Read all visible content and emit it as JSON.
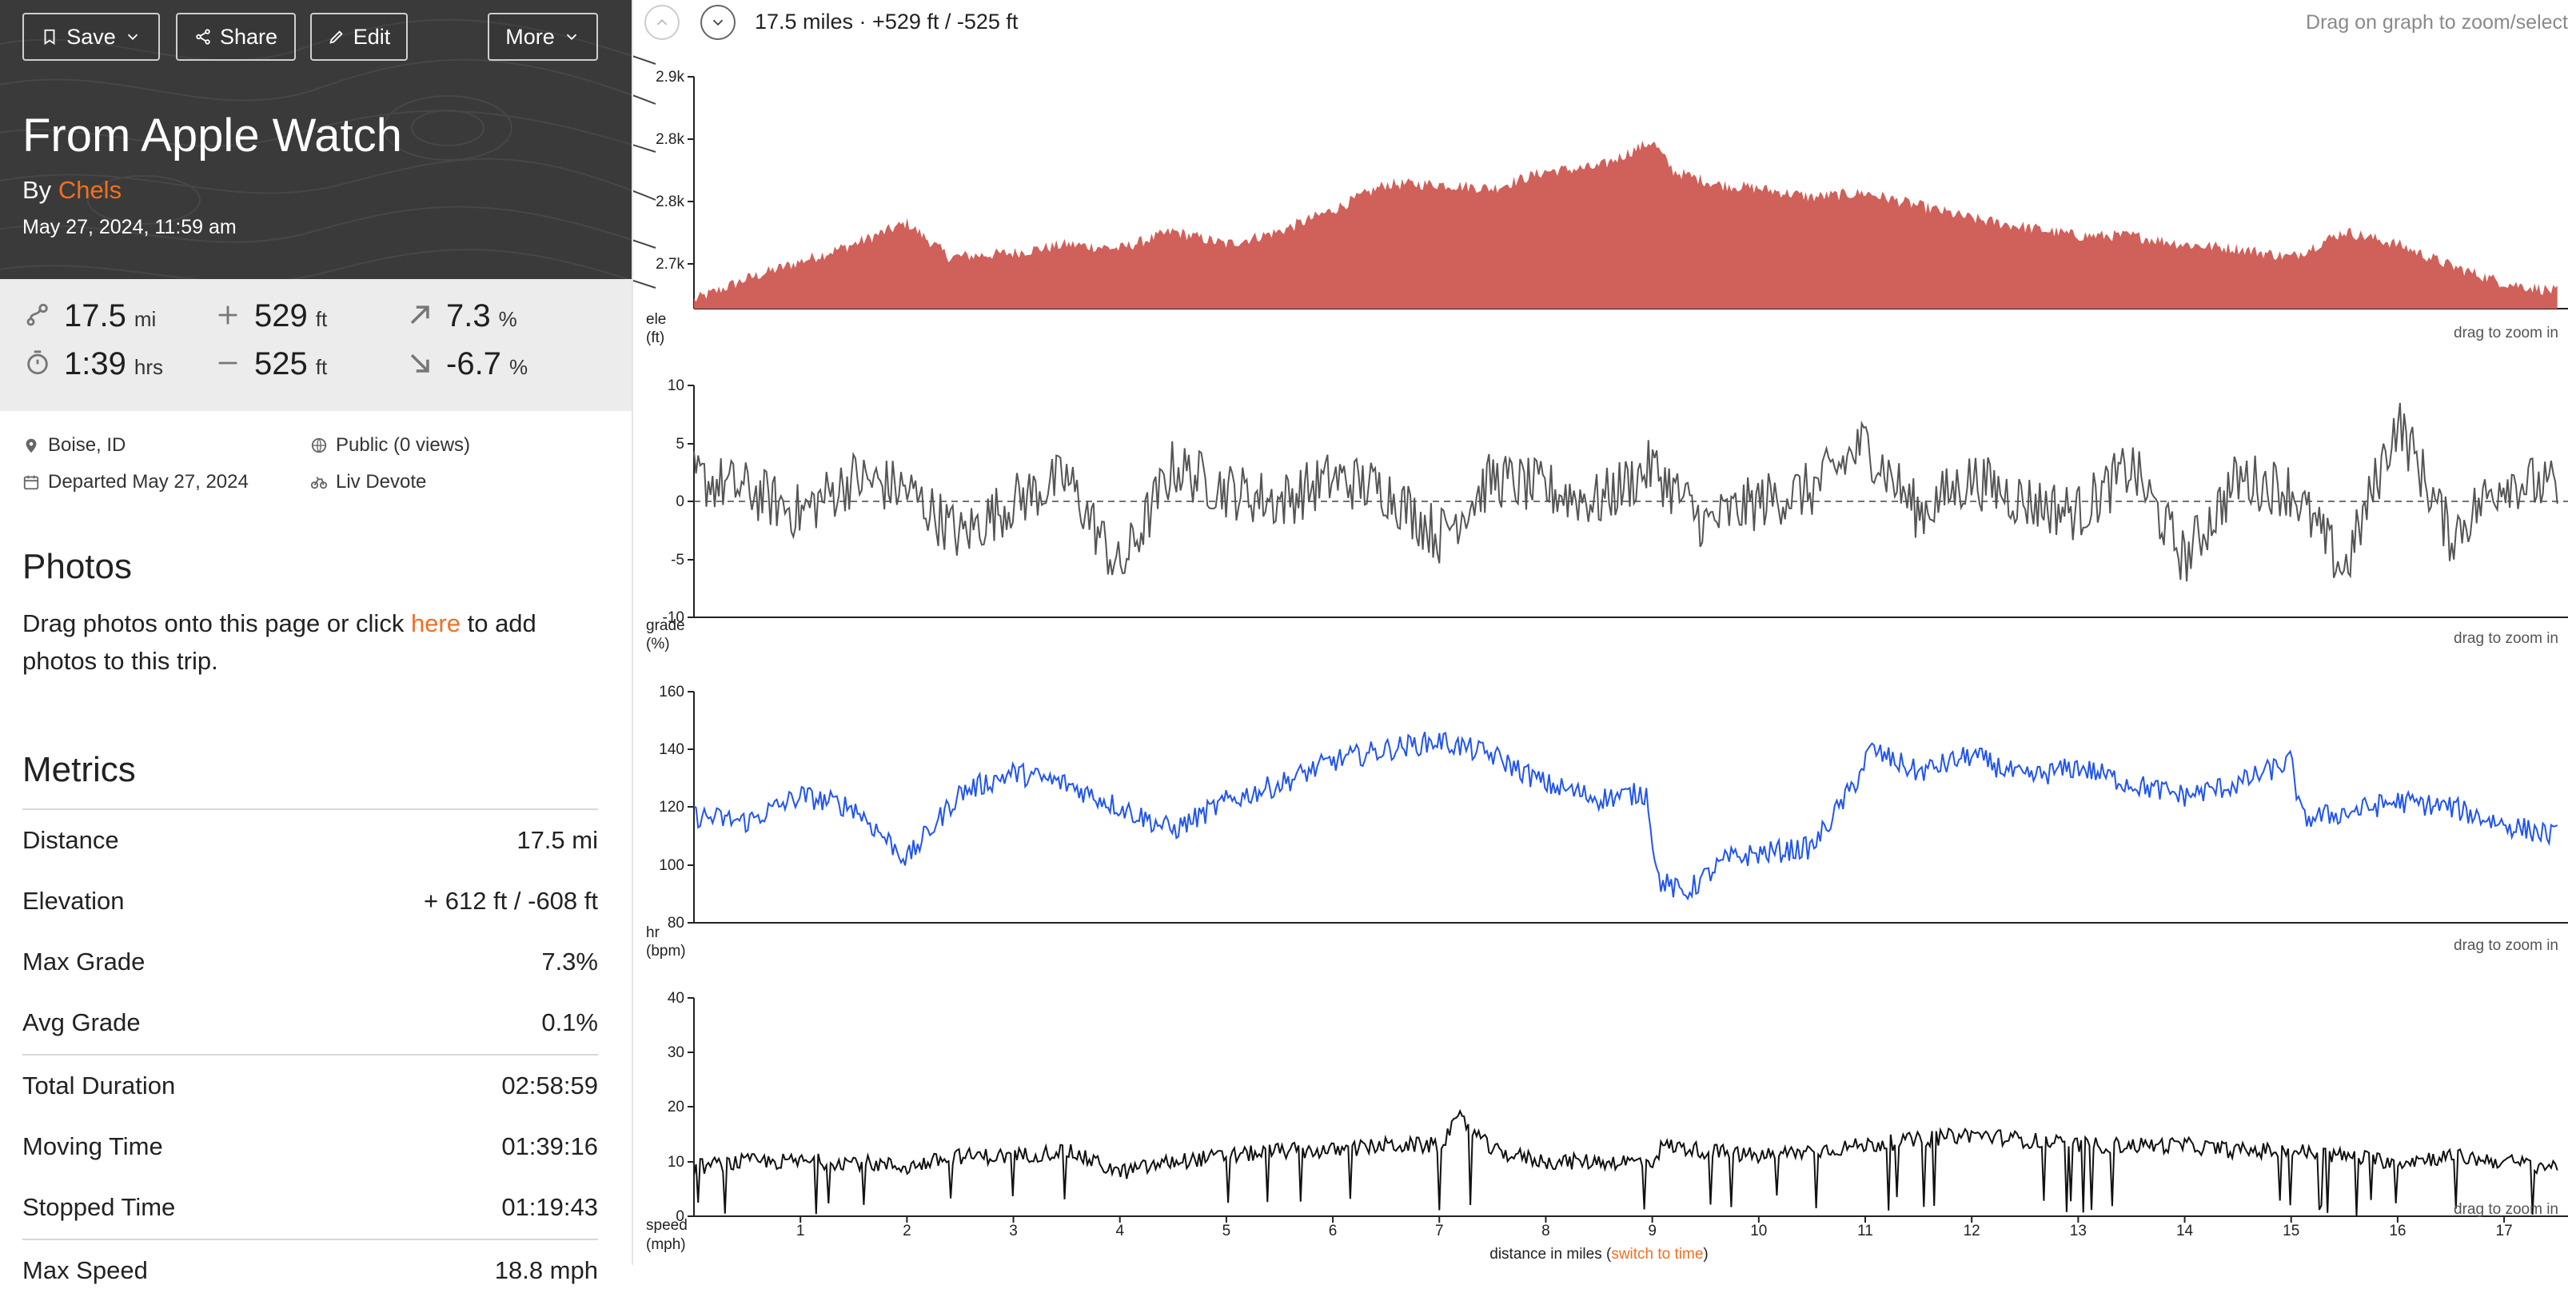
{
  "header": {
    "buttons": {
      "save": "Save",
      "share": "Share",
      "edit": "Edit",
      "more": "More"
    },
    "title": "From Apple Watch",
    "by_prefix": "By",
    "author": "Chels",
    "date": "May 27, 2024, 11:59 am"
  },
  "stats": {
    "distance": {
      "value": "17.5",
      "unit": "mi",
      "icon": "route-icon"
    },
    "elev_gain": {
      "value": "529",
      "unit": "ft",
      "icon": "plus-icon"
    },
    "max_grade": {
      "value": "7.3",
      "unit": "%",
      "icon": "arrow-up-right-icon"
    },
    "duration": {
      "value": "1:39",
      "unit": "hrs",
      "icon": "stopwatch-icon"
    },
    "elev_loss": {
      "value": "525",
      "unit": "ft",
      "icon": "minus-icon"
    },
    "min_grade": {
      "value": "-6.7",
      "unit": "%",
      "icon": "arrow-down-right-icon"
    }
  },
  "meta": {
    "location": "Boise, ID",
    "visibility": "Public (0 views)",
    "departed": "Departed May 27, 2024",
    "bike": "Liv Devote"
  },
  "photos": {
    "heading": "Photos",
    "text_before": "Drag photos onto this page or click ",
    "link": "here",
    "text_after": " to add photos to this trip."
  },
  "metrics": {
    "heading": "Metrics",
    "rows": [
      {
        "label": "Distance",
        "value": "17.5 mi"
      },
      {
        "label": "Elevation",
        "value": "+ 612 ft / -608 ft"
      },
      {
        "label": "Max Grade",
        "value": "7.3%"
      },
      {
        "label": "Avg Grade",
        "value": "0.1%"
      },
      {
        "label": "Total Duration",
        "value": "02:58:59"
      },
      {
        "label": "Moving Time",
        "value": "01:39:16"
      },
      {
        "label": "Stopped Time",
        "value": "01:19:43"
      },
      {
        "label": "Max Speed",
        "value": "18.8 mph"
      }
    ]
  },
  "topbar": {
    "summary": "17.5 miles · +529 ft / -525 ft",
    "hint": "Drag on graph to zoom/select"
  },
  "chart_data": [
    {
      "type": "area",
      "ylabel_line1": "ele",
      "ylabel_line2": "(ft)",
      "yticks": [
        "2.9k",
        "2.8k",
        "2.8k",
        "2.7k"
      ],
      "color": "#d0605a",
      "zoom_hint": "drag to zoom in",
      "x": [
        0,
        0.5,
        1,
        1.5,
        2,
        2.4,
        3,
        3.5,
        4,
        4.5,
        5,
        5.5,
        6,
        6.5,
        7,
        7.5,
        8,
        8.5,
        9,
        9.2,
        9.6,
        10,
        10.5,
        11,
        11.5,
        12,
        12.5,
        13,
        13.5,
        14,
        14.5,
        15,
        15.5,
        16,
        16.5,
        17,
        17.5
      ],
      "y": [
        2640,
        2665,
        2685,
        2705,
        2730,
        2690,
        2695,
        2705,
        2700,
        2720,
        2705,
        2720,
        2745,
        2775,
        2775,
        2770,
        2790,
        2795,
        2825,
        2790,
        2775,
        2770,
        2760,
        2765,
        2750,
        2735,
        2725,
        2715,
        2715,
        2705,
        2700,
        2690,
        2720,
        2705,
        2680,
        2660,
        2650
      ]
    },
    {
      "type": "line",
      "ylabel_line1": "grade",
      "ylabel_line2": "(%)",
      "yticks": [
        "10",
        "5",
        "0",
        "-5",
        "-10"
      ],
      "ylim": [
        -10,
        10
      ],
      "color": "#555555",
      "zoom_hint": "drag to zoom in",
      "x": [
        0,
        0.5,
        1,
        1.5,
        2,
        2.5,
        3,
        3.5,
        4,
        4.5,
        5,
        5.5,
        6,
        6.5,
        7,
        7.5,
        8,
        8.5,
        9,
        9.5,
        10,
        10.5,
        11,
        11.5,
        12,
        12.5,
        13,
        13.5,
        14,
        14.5,
        15,
        15.5,
        16,
        16.5,
        17,
        17.5
      ],
      "y": [
        2,
        1,
        -1,
        2,
        1,
        -3,
        0,
        2,
        -6,
        3,
        1,
        0,
        2,
        1,
        -3,
        2,
        1,
        0,
        3,
        -2,
        0,
        1,
        5,
        -1,
        2,
        0,
        -1,
        3,
        -5,
        2,
        1,
        -6,
        7,
        -3,
        2,
        1
      ]
    },
    {
      "type": "line",
      "ylabel_line1": "hr",
      "ylabel_line2": "(bpm)",
      "yticks": [
        "160",
        "140",
        "120",
        "100",
        "80"
      ],
      "ylim": [
        80,
        160
      ],
      "color": "#2255ee",
      "zoom_hint": "drag to zoom in",
      "x": [
        0,
        0.5,
        1,
        1.5,
        2,
        2.5,
        3,
        3.5,
        4,
        4.5,
        5,
        5.5,
        6,
        6.5,
        7,
        7.5,
        8,
        8.5,
        8.95,
        9.05,
        9.3,
        9.7,
        10,
        10.5,
        10.9,
        11.05,
        11.5,
        12,
        12.5,
        13,
        13.5,
        14,
        14.5,
        15,
        15.1,
        15.5,
        16,
        16.5,
        17,
        17.5
      ],
      "y": [
        117,
        115,
        124,
        120,
        102,
        125,
        132,
        128,
        120,
        112,
        122,
        128,
        136,
        140,
        143,
        138,
        128,
        123,
        125,
        95,
        90,
        102,
        104,
        106,
        128,
        140,
        132,
        138,
        130,
        134,
        128,
        124,
        128,
        136,
        116,
        118,
        122,
        120,
        114,
        110
      ]
    },
    {
      "type": "line",
      "ylabel_line1": "speed",
      "ylabel_line2": "(mph)",
      "yticks": [
        "40",
        "30",
        "20",
        "10",
        "0"
      ],
      "ylim": [
        0,
        40
      ],
      "color": "#111111",
      "zoom_hint": "drag to zoom in",
      "xticks": [
        "1",
        "2",
        "3",
        "4",
        "5",
        "6",
        "7",
        "8",
        "9",
        "10",
        "11",
        "12",
        "13",
        "14",
        "15",
        "16",
        "17"
      ],
      "xlabel_prefix": "distance in miles (",
      "xlabel_link": "switch to time",
      "xlabel_suffix": ")",
      "x": [
        0,
        0.5,
        1,
        1.5,
        2,
        2.5,
        3,
        3.5,
        4,
        4.5,
        5,
        5.5,
        6,
        6.5,
        7,
        7.2,
        7.5,
        8,
        8.5,
        9,
        9.1,
        9.5,
        10,
        10.5,
        11,
        11.5,
        12,
        12.5,
        13,
        13.5,
        14,
        14.5,
        15,
        15.5,
        16,
        16.5,
        17,
        17.5
      ],
      "y": [
        9,
        10,
        10,
        10,
        9,
        11,
        11,
        12,
        8,
        10,
        11,
        12,
        12,
        13,
        13,
        18,
        12,
        10,
        10,
        10,
        13,
        12,
        11,
        12,
        13,
        14,
        15,
        14,
        13,
        13,
        13,
        12,
        12,
        11,
        10,
        11,
        10,
        9
      ]
    }
  ]
}
